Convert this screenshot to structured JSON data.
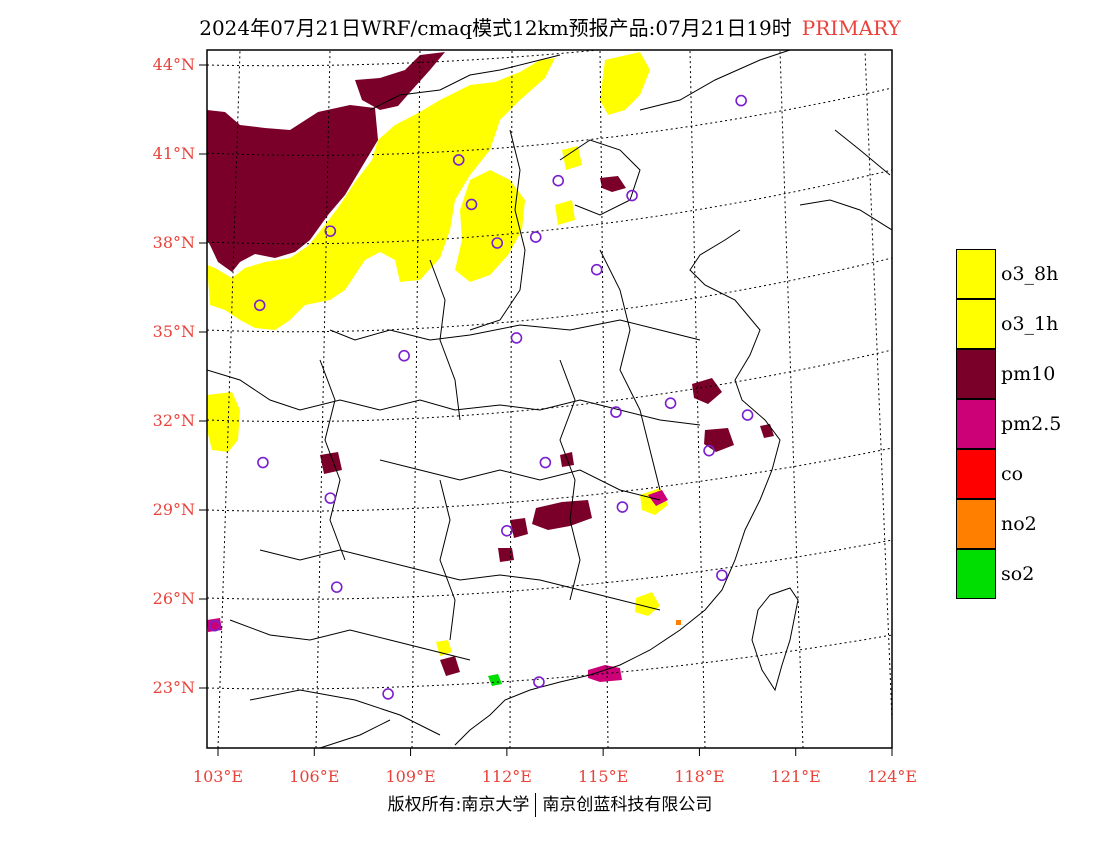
{
  "title": {
    "main": "2024年07月21日WRF/cmaq模式12km预报产品:07月21日19时",
    "tag": "PRIMARY"
  },
  "axes": {
    "lat_labels": [
      "44°N",
      "41°N",
      "38°N",
      "35°N",
      "32°N",
      "29°N",
      "26°N",
      "23°N"
    ],
    "lat_values": [
      44,
      41,
      38,
      35,
      32,
      29,
      26,
      23
    ],
    "lon_labels": [
      "103°E",
      "106°E",
      "109°E",
      "112°E",
      "115°E",
      "118°E",
      "121°E",
      "124°E"
    ],
    "lon_values": [
      103,
      106,
      109,
      112,
      115,
      118,
      121,
      124
    ]
  },
  "legend": [
    {
      "label": "o3_8h",
      "color": "#ffff00"
    },
    {
      "label": "o3_1h",
      "color": "#ffff00"
    },
    {
      "label": "pm10",
      "color": "#7b0029"
    },
    {
      "label": "pm2.5",
      "color": "#cc0077"
    },
    {
      "label": "co",
      "color": "#ff0000"
    },
    {
      "label": "no2",
      "color": "#ff8000"
    },
    {
      "label": "so2",
      "color": "#00dd00"
    }
  ],
  "stations": [
    [
      110.5,
      40.8
    ],
    [
      113.6,
      40.1
    ],
    [
      115.9,
      39.6
    ],
    [
      119.3,
      42.8
    ],
    [
      106.5,
      38.4
    ],
    [
      111.7,
      38.0
    ],
    [
      112.9,
      38.2
    ],
    [
      114.8,
      37.1
    ],
    [
      104.3,
      35.9
    ],
    [
      112.3,
      34.8
    ],
    [
      108.8,
      34.2
    ],
    [
      117.1,
      32.6
    ],
    [
      115.4,
      32.3
    ],
    [
      119.5,
      32.2
    ],
    [
      118.3,
      31.0
    ],
    [
      104.4,
      30.6
    ],
    [
      113.2,
      30.6
    ],
    [
      106.5,
      29.4
    ],
    [
      115.6,
      29.1
    ],
    [
      112.0,
      28.3
    ],
    [
      118.7,
      26.8
    ],
    [
      106.7,
      26.4
    ],
    [
      102.9,
      25.1
    ],
    [
      108.3,
      22.8
    ],
    [
      113.0,
      23.2
    ],
    [
      110.9,
      39.3
    ]
  ],
  "footer": {
    "left": "版权所有:南京大学",
    "right": "南京创蓝科技有限公司"
  }
}
